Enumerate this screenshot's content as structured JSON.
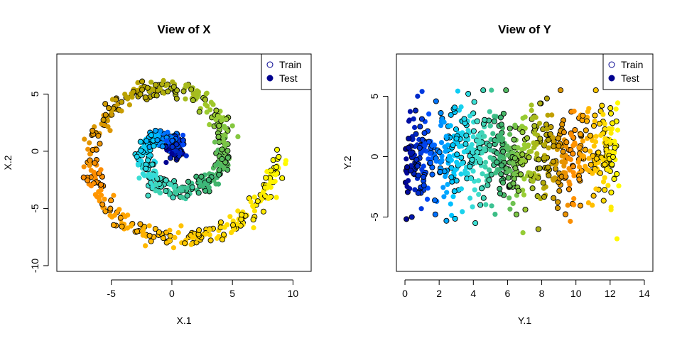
{
  "chart_data": [
    {
      "type": "scatter",
      "title": "View of X",
      "xlabel": "X.1",
      "ylabel": "X.2",
      "xlim": [
        -9.5,
        11.5
      ],
      "ylim": [
        -10.5,
        8.5
      ],
      "xticks": [
        -5,
        0,
        5,
        10
      ],
      "yticks": [
        -10,
        -5,
        0,
        5
      ],
      "grid": false,
      "legend": {
        "position": "top-right",
        "entries": [
          "Train",
          "Test"
        ]
      },
      "color_scale": [
        "#00008f",
        "#0050ff",
        "#00c8ff",
        "#40e0d0",
        "#3cb371",
        "#9acd32",
        "#b8a200",
        "#ff8c00",
        "#ffc800",
        "#ffff00"
      ],
      "shape": "spiral",
      "spiral": {
        "t_range": [
          0,
          12.56
        ],
        "radius_per_t": 0.7,
        "jitter": 0.4
      },
      "n_train": 400,
      "n_test": 400
    },
    {
      "type": "scatter",
      "title": "View of Y",
      "xlabel": "Y.1",
      "ylabel": "Y.2",
      "xlim": [
        -0.5,
        14.5
      ],
      "ylim": [
        -9.5,
        8.5
      ],
      "xticks": [
        0,
        2,
        4,
        6,
        8,
        10,
        12,
        14
      ],
      "yticks": [
        -5,
        0,
        5
      ],
      "grid": false,
      "legend": {
        "position": "top-right",
        "entries": [
          "Train",
          "Test"
        ]
      },
      "color_scale": [
        "#00008f",
        "#0050ff",
        "#00c8ff",
        "#40e0d0",
        "#3cb371",
        "#9acd32",
        "#b8a200",
        "#ff8c00",
        "#ffc800",
        "#ffff00"
      ],
      "shape": "band",
      "band": {
        "x_range": [
          0,
          12.56
        ],
        "y_spread": 2.0
      },
      "highlighted_points": [
        {
          "x": 12.4,
          "y": -6.8
        },
        {
          "x": 7.8,
          "y": -6.0
        },
        {
          "x": 6.9,
          "y": -6.3
        },
        {
          "x": 3.7,
          "y": 5.2
        },
        {
          "x": 1.0,
          "y": 5.4
        },
        {
          "x": 0.4,
          "y": -5.0
        }
      ],
      "n_train": 400,
      "n_test": 400
    }
  ]
}
